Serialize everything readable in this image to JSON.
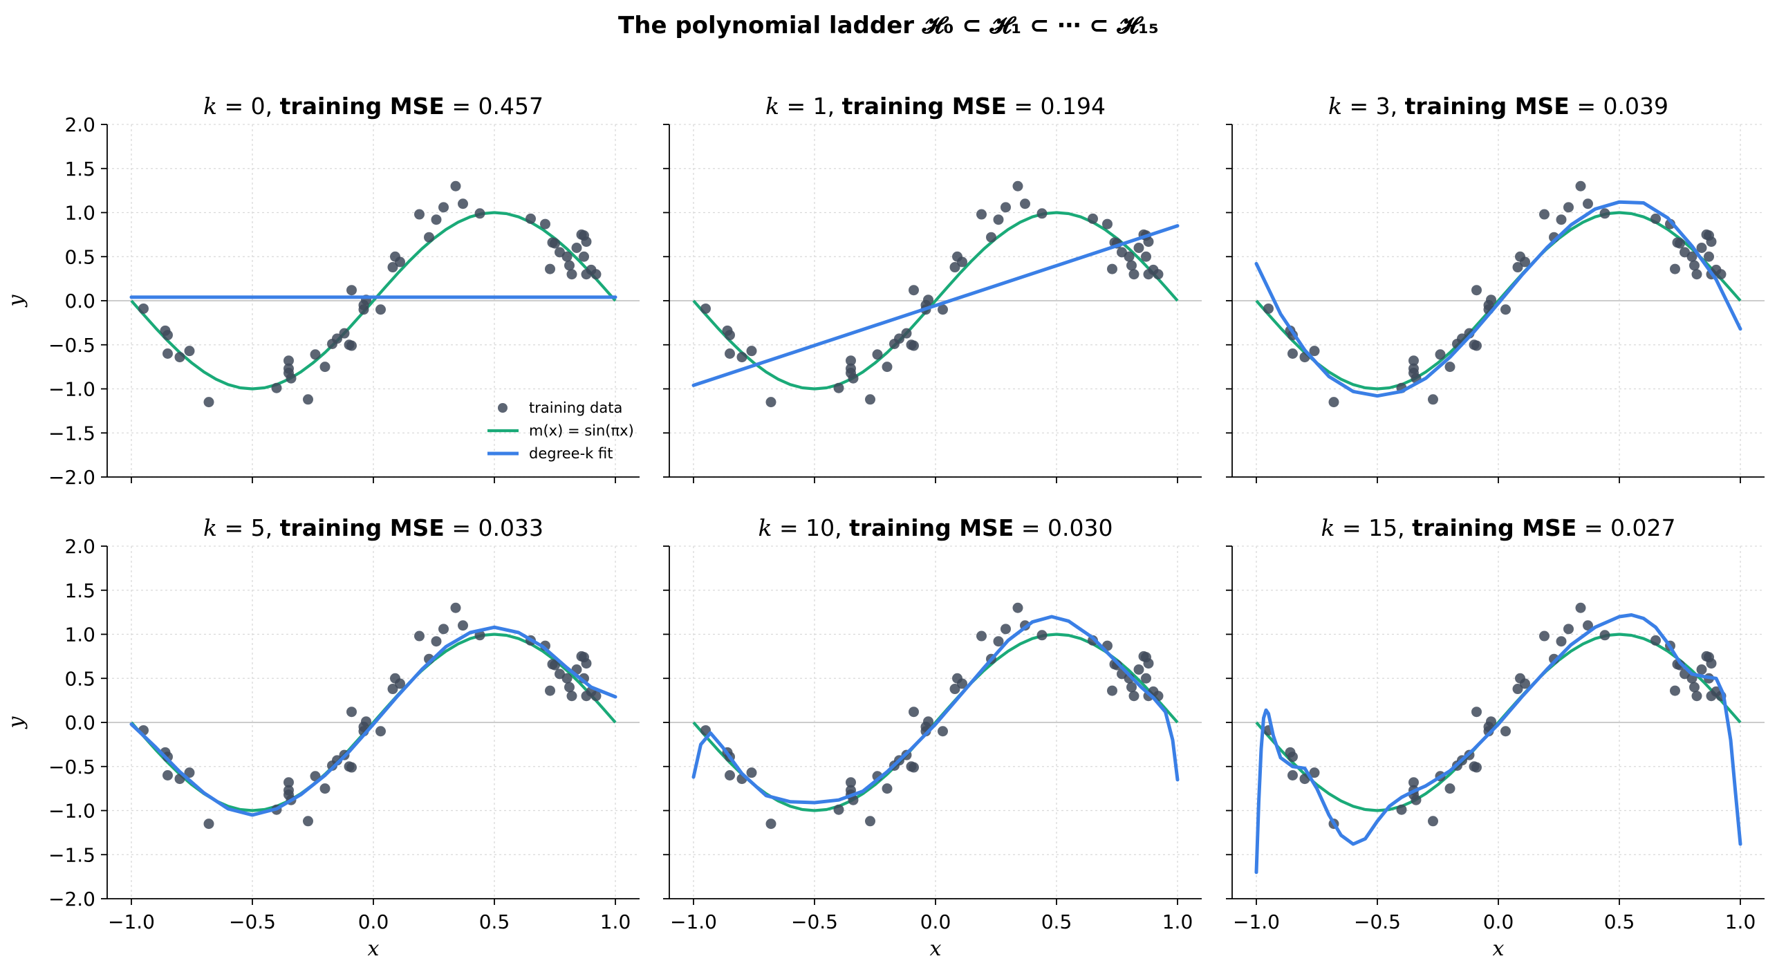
{
  "title": "The polynomial ladder 𝓗₀ ⊂ 𝓗₁ ⊂ ⋯ ⊂ 𝓗₁₅",
  "chart_data": [
    {
      "type": "line",
      "k": 0,
      "title": "k = 0,  training MSE = 0.457",
      "mse": "0.457",
      "xlabel": "",
      "ylabel": "y",
      "xlim": [
        -1.1,
        1.1
      ],
      "ylim": [
        -2.0,
        2.0
      ],
      "xticks": [
        "−1.0",
        "−0.5",
        "0.0",
        "0.5",
        "1.0"
      ],
      "yticks": [
        "−2.0",
        "−1.5",
        "−1.0",
        "−0.5",
        "0.0",
        "0.5",
        "1.0",
        "1.5",
        "2.0"
      ],
      "fit": {
        "x": [
          -1.0,
          1.0
        ],
        "y": [
          0.04,
          0.04
        ]
      }
    },
    {
      "type": "line",
      "k": 1,
      "title": "k = 1,  training MSE = 0.194",
      "mse": "0.194",
      "xlabel": "",
      "ylabel": "",
      "xlim": [
        -1.1,
        1.1
      ],
      "ylim": [
        -2.0,
        2.0
      ],
      "xticks": [
        "−1.0",
        "−0.5",
        "0.0",
        "0.5",
        "1.0"
      ],
      "yticks": [],
      "fit": {
        "x": [
          -1.0,
          1.0
        ],
        "y": [
          -0.96,
          0.85
        ]
      }
    },
    {
      "type": "line",
      "k": 3,
      "title": "k = 3,  training MSE = 0.039",
      "mse": "0.039",
      "xlabel": "",
      "ylabel": "",
      "xlim": [
        -1.1,
        1.1
      ],
      "ylim": [
        -2.0,
        2.0
      ],
      "xticks": [
        "−1.0",
        "−0.5",
        "0.0",
        "0.5",
        "1.0"
      ],
      "yticks": [],
      "fit": {
        "x": [
          -1.0,
          -0.9,
          -0.8,
          -0.7,
          -0.6,
          -0.5,
          -0.4,
          -0.3,
          -0.2,
          -0.1,
          0.0,
          0.1,
          0.2,
          0.3,
          0.4,
          0.5,
          0.6,
          0.7,
          0.8,
          0.9,
          1.0
        ],
        "y": [
          0.42,
          -0.15,
          -0.56,
          -0.86,
          -1.03,
          -1.08,
          -1.03,
          -0.88,
          -0.64,
          -0.35,
          -0.03,
          0.3,
          0.6,
          0.86,
          1.04,
          1.12,
          1.11,
          0.94,
          0.62,
          0.24,
          -0.32
        ]
      }
    },
    {
      "type": "line",
      "k": 5,
      "title": "k = 5,  training MSE = 0.033",
      "mse": "0.033",
      "xlabel": "x",
      "ylabel": "y",
      "xlim": [
        -1.1,
        1.1
      ],
      "ylim": [
        -2.0,
        2.0
      ],
      "xticks": [
        "−1.0",
        "−0.5",
        "0.0",
        "0.5",
        "1.0"
      ],
      "yticks": [
        "−2.0",
        "−1.5",
        "−1.0",
        "−0.5",
        "0.0",
        "0.5",
        "1.0",
        "1.5",
        "2.0"
      ],
      "fit": {
        "x": [
          -1.0,
          -0.9,
          -0.8,
          -0.7,
          -0.6,
          -0.5,
          -0.4,
          -0.3,
          -0.2,
          -0.1,
          0.0,
          0.1,
          0.2,
          0.3,
          0.4,
          0.5,
          0.6,
          0.7,
          0.8,
          0.9,
          1.0
        ],
        "y": [
          -0.02,
          -0.28,
          -0.56,
          -0.8,
          -0.98,
          -1.05,
          -0.98,
          -0.82,
          -0.6,
          -0.33,
          -0.02,
          0.3,
          0.6,
          0.86,
          1.02,
          1.08,
          1.02,
          0.86,
          0.62,
          0.4,
          0.29
        ]
      }
    },
    {
      "type": "line",
      "k": 10,
      "title": "k = 10,  training MSE = 0.030",
      "mse": "0.030",
      "xlabel": "x",
      "ylabel": "",
      "xlim": [
        -1.1,
        1.1
      ],
      "ylim": [
        -2.0,
        2.0
      ],
      "xticks": [
        "−1.0",
        "−0.5",
        "0.0",
        "0.5",
        "1.0"
      ],
      "yticks": [],
      "fit": {
        "x": [
          -1.0,
          -0.97,
          -0.93,
          -0.88,
          -0.8,
          -0.7,
          -0.6,
          -0.5,
          -0.4,
          -0.3,
          -0.2,
          -0.1,
          0.0,
          0.1,
          0.2,
          0.3,
          0.4,
          0.48,
          0.55,
          0.65,
          0.75,
          0.85,
          0.9,
          0.95,
          0.98,
          1.0
        ],
        "y": [
          -0.62,
          -0.25,
          -0.12,
          -0.28,
          -0.58,
          -0.83,
          -0.9,
          -0.91,
          -0.88,
          -0.78,
          -0.56,
          -0.3,
          -0.02,
          0.3,
          0.62,
          0.93,
          1.14,
          1.2,
          1.15,
          0.96,
          0.68,
          0.4,
          0.28,
          0.12,
          -0.2,
          -0.65
        ]
      }
    },
    {
      "type": "line",
      "k": 15,
      "title": "k = 15,  training MSE = 0.027",
      "mse": "0.027",
      "xlabel": "x",
      "ylabel": "",
      "xlim": [
        -1.1,
        1.1
      ],
      "ylim": [
        -2.0,
        2.0
      ],
      "xticks": [
        "−1.0",
        "−0.5",
        "0.0",
        "0.5",
        "1.0"
      ],
      "yticks": [],
      "fit": {
        "x": [
          -1.0,
          -0.99,
          -0.98,
          -0.97,
          -0.96,
          -0.95,
          -0.93,
          -0.9,
          -0.85,
          -0.8,
          -0.75,
          -0.7,
          -0.65,
          -0.6,
          -0.55,
          -0.5,
          -0.45,
          -0.4,
          -0.35,
          -0.3,
          -0.2,
          -0.1,
          0.0,
          0.1,
          0.2,
          0.3,
          0.4,
          0.5,
          0.55,
          0.6,
          0.65,
          0.7,
          0.75,
          0.8,
          0.85,
          0.9,
          0.93,
          0.96,
          0.98,
          1.0
        ],
        "y": [
          -1.7,
          -0.9,
          -0.3,
          0.05,
          0.14,
          0.1,
          -0.15,
          -0.4,
          -0.5,
          -0.52,
          -0.75,
          -1.05,
          -1.28,
          -1.38,
          -1.32,
          -1.12,
          -0.95,
          -0.85,
          -0.78,
          -0.72,
          -0.55,
          -0.3,
          -0.02,
          0.3,
          0.6,
          0.88,
          1.08,
          1.2,
          1.22,
          1.18,
          1.08,
          0.9,
          0.68,
          0.55,
          0.52,
          0.5,
          0.32,
          -0.2,
          -0.8,
          -1.38
        ]
      }
    }
  ],
  "true_function": {
    "x": [
      -1.0,
      -0.95,
      -0.9,
      -0.85,
      -0.8,
      -0.75,
      -0.7,
      -0.65,
      -0.6,
      -0.55,
      -0.5,
      -0.45,
      -0.4,
      -0.35,
      -0.3,
      -0.25,
      -0.2,
      -0.15,
      -0.1,
      -0.05,
      0.0,
      0.05,
      0.1,
      0.15,
      0.2,
      0.25,
      0.3,
      0.35,
      0.4,
      0.45,
      0.5,
      0.55,
      0.6,
      0.65,
      0.7,
      0.75,
      0.8,
      0.85,
      0.9,
      0.95,
      1.0
    ],
    "y": [
      0.0,
      -0.156,
      -0.309,
      -0.454,
      -0.588,
      -0.707,
      -0.809,
      -0.891,
      -0.951,
      -0.988,
      -1.0,
      -0.988,
      -0.951,
      -0.891,
      -0.809,
      -0.707,
      -0.588,
      -0.454,
      -0.309,
      -0.156,
      0.0,
      0.156,
      0.309,
      0.454,
      0.588,
      0.707,
      0.809,
      0.891,
      0.951,
      0.988,
      1.0,
      0.988,
      0.951,
      0.891,
      0.809,
      0.707,
      0.588,
      0.454,
      0.309,
      0.156,
      0.0
    ]
  },
  "training_data": {
    "x": [
      -0.95,
      -0.86,
      -0.85,
      -0.85,
      -0.8,
      -0.76,
      -0.68,
      -0.4,
      -0.35,
      -0.35,
      -0.35,
      -0.34,
      -0.27,
      -0.24,
      -0.2,
      -0.17,
      -0.15,
      -0.12,
      -0.1,
      -0.09,
      -0.09,
      -0.04,
      -0.04,
      -0.03,
      0.03,
      0.08,
      0.09,
      0.11,
      0.19,
      0.23,
      0.26,
      0.29,
      0.34,
      0.37,
      0.44,
      0.65,
      0.71,
      0.73,
      0.74,
      0.75,
      0.77,
      0.8,
      0.81,
      0.82,
      0.84,
      0.86,
      0.87,
      0.87,
      0.88,
      0.88,
      0.9,
      0.92
    ],
    "y": [
      -0.09,
      -0.34,
      -0.39,
      -0.6,
      -0.64,
      -0.57,
      -1.15,
      -0.99,
      -0.68,
      -0.77,
      -0.82,
      -0.88,
      -1.12,
      -0.61,
      -0.75,
      -0.49,
      -0.43,
      -0.37,
      -0.5,
      -0.51,
      0.12,
      -0.1,
      -0.05,
      0.01,
      -0.1,
      0.38,
      0.5,
      0.44,
      0.98,
      0.72,
      0.92,
      1.06,
      1.3,
      1.1,
      0.99,
      0.93,
      0.87,
      0.36,
      0.66,
      0.65,
      0.55,
      0.5,
      0.4,
      0.3,
      0.6,
      0.75,
      0.74,
      0.5,
      0.67,
      0.3,
      0.35,
      0.3
    ]
  },
  "legend": {
    "position": "lower right",
    "entries": [
      {
        "label": "training data",
        "color": "#3f4a5a"
      },
      {
        "label": "m(x) = sin(πx)",
        "color": "#1aaa78"
      },
      {
        "label": "degree-k fit",
        "color": "#3a7fe6"
      }
    ]
  },
  "colors": {
    "truth": "#1aaa78",
    "fit": "#3a7fe6",
    "points": "#3f4a5a",
    "grid": "#d9d9d9",
    "zero_line": "#cccccc"
  }
}
